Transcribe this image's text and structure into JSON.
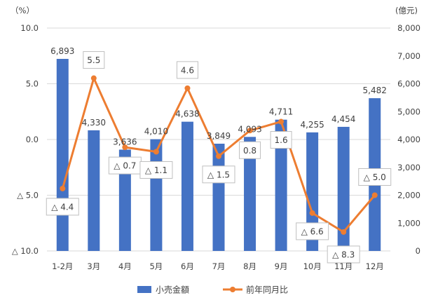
{
  "chart_data": {
    "type": "bar+line",
    "categories": [
      "1-2月",
      "3月",
      "4月",
      "5月",
      "6月",
      "7月",
      "8月",
      "9月",
      "10月",
      "11月",
      "12月"
    ],
    "series": [
      {
        "name": "小売金額",
        "type": "bar",
        "axis": "right",
        "values": [
          6893,
          4330,
          3636,
          4010,
          4638,
          3849,
          4093,
          4711,
          4255,
          4454,
          5482
        ],
        "labels": [
          "6,893",
          "4,330",
          "3,636",
          "4,010",
          "4,638",
          "3,849",
          "4,093",
          "4,711",
          "4,255",
          "4,454",
          "5,482"
        ],
        "color": "#4472C4"
      },
      {
        "name": "前年同月比",
        "type": "line",
        "axis": "left",
        "values": [
          -4.4,
          5.5,
          -0.7,
          -1.1,
          4.6,
          -1.5,
          0.8,
          1.6,
          -6.6,
          -8.3,
          -5.0
        ],
        "labels": [
          "△ 4.4",
          "5.5",
          "△ 0.7",
          "△ 1.1",
          "4.6",
          "△ 1.5",
          "0.8",
          "1.6",
          "△ 6.6",
          "△ 8.3",
          "△ 5.0"
        ],
        "color": "#ED7D31"
      }
    ],
    "left_axis": {
      "unit": "（%）",
      "ylim": [
        -10,
        10
      ],
      "ticks": [
        10,
        5,
        0,
        -5,
        -10
      ],
      "tick_labels": [
        "10.0",
        "5.0",
        "0.0",
        "△ 5.0",
        "△ 10.0"
      ]
    },
    "right_axis": {
      "unit": "(億元)",
      "ylim": [
        0,
        8000
      ],
      "ticks": [
        8000,
        7000,
        6000,
        5000,
        4000,
        3000,
        2000,
        1000,
        0
      ],
      "tick_labels": [
        "8,000",
        "7,000",
        "6,000",
        "5,000",
        "4,000",
        "3,000",
        "2,000",
        "1,000",
        "0"
      ]
    },
    "grid": true,
    "legend_position": "bottom"
  }
}
